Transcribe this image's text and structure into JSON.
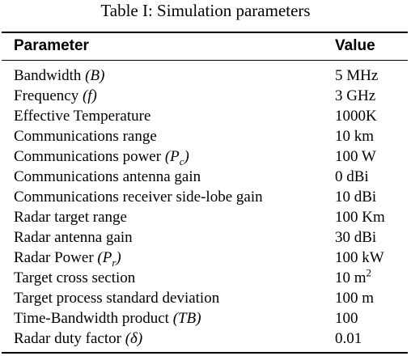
{
  "caption": "Table I: Simulation parameters",
  "table": {
    "headers": {
      "parameter": "Parameter",
      "value": "Value"
    },
    "rows": [
      {
        "parameter": "Bandwidth",
        "sym": "(B)",
        "value": "5 MHz"
      },
      {
        "parameter": "Frequency",
        "sym": "(f)",
        "value": "3 GHz"
      },
      {
        "parameter": "Effective Temperature",
        "sym": "",
        "value": "1000K"
      },
      {
        "parameter": "Communications range",
        "sym": "",
        "value": "10 km"
      },
      {
        "parameter": "Communications power",
        "sym": "(P",
        "sub": "c",
        "symEnd": ")",
        "value": "100 W"
      },
      {
        "parameter": "Communications antenna gain",
        "sym": "",
        "value": "0 dBi"
      },
      {
        "parameter": "Communications receiver side-lobe gain",
        "sym": "",
        "value": "10 dBi"
      },
      {
        "parameter": "Radar target range",
        "sym": "",
        "value": "100 Km"
      },
      {
        "parameter": "Radar antenna gain",
        "sym": "",
        "value": "30 dBi"
      },
      {
        "parameter": "Radar Power",
        "sym": "(P",
        "sub": "r",
        "symEnd": ")",
        "value": "100 kW"
      },
      {
        "parameter": "Target cross section",
        "sym": "",
        "value": "10 m",
        "valueSup": "2"
      },
      {
        "parameter": "Target process standard deviation",
        "sym": "",
        "value": "100 m"
      },
      {
        "parameter": "Time-Bandwidth product",
        "sym": "(TB)",
        "value": "100"
      },
      {
        "parameter": "Radar duty factor",
        "sym": "(δ)",
        "value": "0.01"
      }
    ]
  }
}
